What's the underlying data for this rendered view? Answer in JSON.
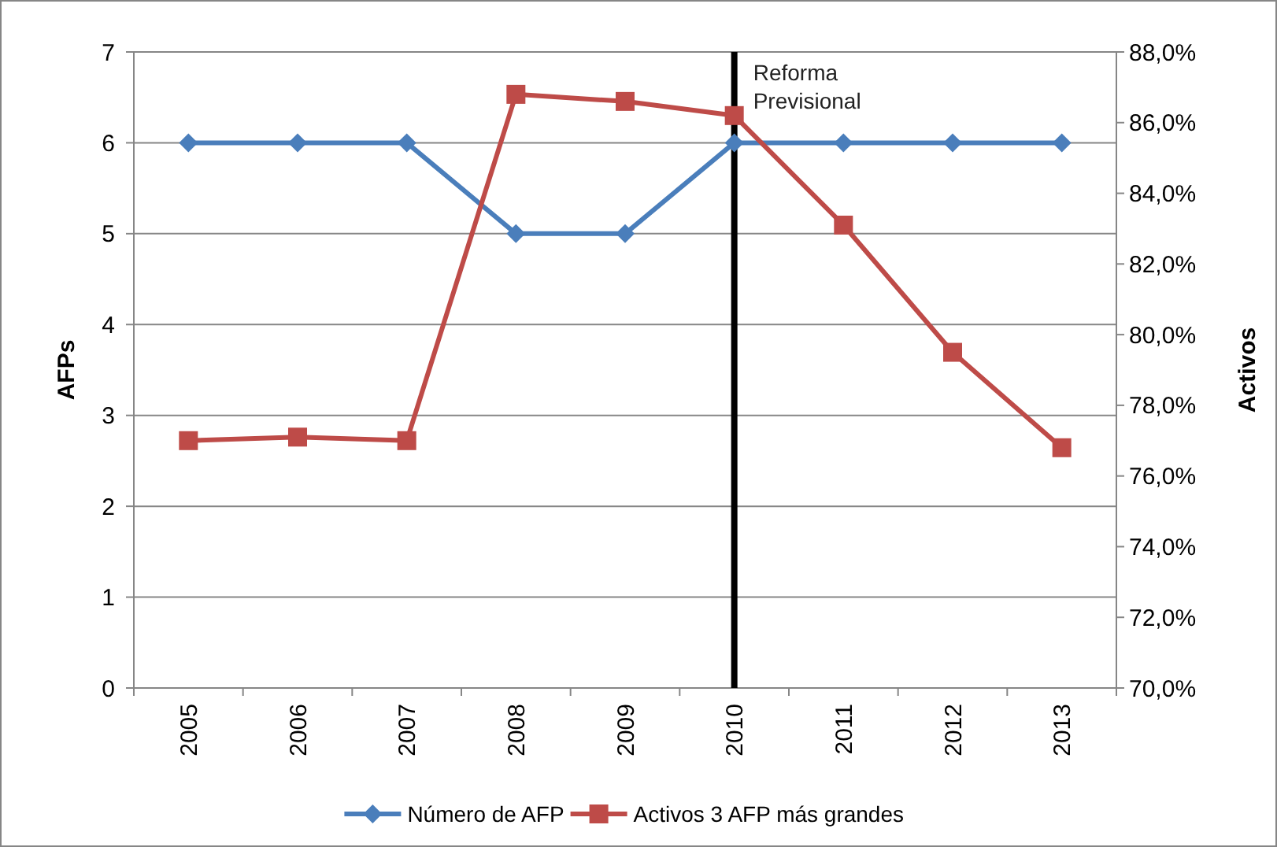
{
  "chart_data": {
    "type": "line",
    "categories": [
      "2005",
      "2006",
      "2007",
      "2008",
      "2009",
      "2010",
      "2011",
      "2012",
      "2013"
    ],
    "series": [
      {
        "name": "Número de AFP",
        "color": "#4a7ebb",
        "marker": "diamond",
        "values": [
          6,
          6,
          6,
          5,
          5,
          6,
          6,
          6,
          6
        ]
      },
      {
        "name": "Activos 3 AFP más grandes",
        "color": "#be4b48",
        "marker": "square",
        "axis": "y2",
        "values": [
          77.0,
          77.1,
          77.0,
          86.8,
          86.6,
          86.2,
          83.1,
          79.5,
          76.8
        ]
      }
    ],
    "ylabel": "AFPs",
    "y2label": "Activos",
    "ylim": [
      0,
      7
    ],
    "yticks": [
      0,
      1,
      2,
      3,
      4,
      5,
      6,
      7
    ],
    "y2lim": [
      70,
      88
    ],
    "y2ticks": [
      {
        "value": 70,
        "label": "70,0%"
      },
      {
        "value": 72,
        "label": "72,0%"
      },
      {
        "value": 74,
        "label": "74,0%"
      },
      {
        "value": 76,
        "label": "76,0%"
      },
      {
        "value": 78,
        "label": "78,0%"
      },
      {
        "value": 80,
        "label": "80,0%"
      },
      {
        "value": 82,
        "label": "82,0%"
      },
      {
        "value": 84,
        "label": "84,0%"
      },
      {
        "value": 86,
        "label": "86,0%"
      },
      {
        "value": 88,
        "label": "88,0%"
      }
    ],
    "ref_lines": [
      {
        "axis": "x",
        "value": "2010",
        "label": "Reforma Previsional",
        "color": "#000000"
      }
    ],
    "grid": "y",
    "legend": "bottom"
  }
}
